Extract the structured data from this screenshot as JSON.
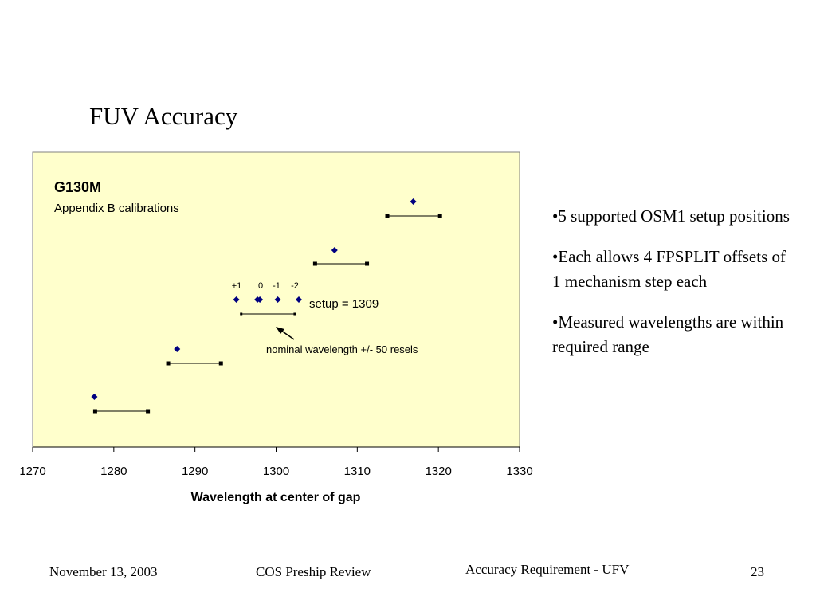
{
  "slide": {
    "title": "FUV Accuracy",
    "bullets": [
      "•5 supported OSM1 setup positions",
      "•Each allows 4 FPSPLIT offsets of 1 mechanism step each",
      "•Measured wavelengths are within required range"
    ]
  },
  "footer": {
    "date": "November 13, 2003",
    "review": "COS Preship Review",
    "section": "Accuracy Requirement - UFV",
    "page": "23"
  },
  "chart_data": {
    "type": "scatter",
    "title": "G130M",
    "subtitle": "Appendix B calibrations",
    "xlabel": "Wavelength at center of gap",
    "ylabel": "",
    "xlim": [
      1270,
      1330
    ],
    "xticks": [
      1270,
      1280,
      1290,
      1300,
      1310,
      1320,
      1330
    ],
    "grid": false,
    "background": "#ffffcc",
    "colors": {
      "measured": "#000080",
      "range": "#000000"
    },
    "ranges": [
      {
        "x": [
          1277.7,
          1284.2
        ]
      },
      {
        "x": [
          1286.7,
          1293.2
        ]
      },
      {
        "x": [
          1295.7,
          1302.3
        ]
      },
      {
        "x": [
          1304.8,
          1311.2
        ]
      },
      {
        "x": [
          1313.7,
          1320.2
        ]
      }
    ],
    "measured": [
      {
        "x": 1277.6
      },
      {
        "x": 1287.8
      },
      {
        "x": 1295.1
      },
      {
        "x": 1297.7
      },
      {
        "x": 1298.0
      },
      {
        "x": 1300.2
      },
      {
        "x": 1302.8
      },
      {
        "x": 1307.2
      },
      {
        "x": 1316.9
      }
    ],
    "offset_labels": [
      "+1",
      "0",
      "-1",
      "-2"
    ],
    "annotations": {
      "setup": "setup = 1309",
      "nominal": "nominal wavelength +/- 50 resels"
    }
  }
}
